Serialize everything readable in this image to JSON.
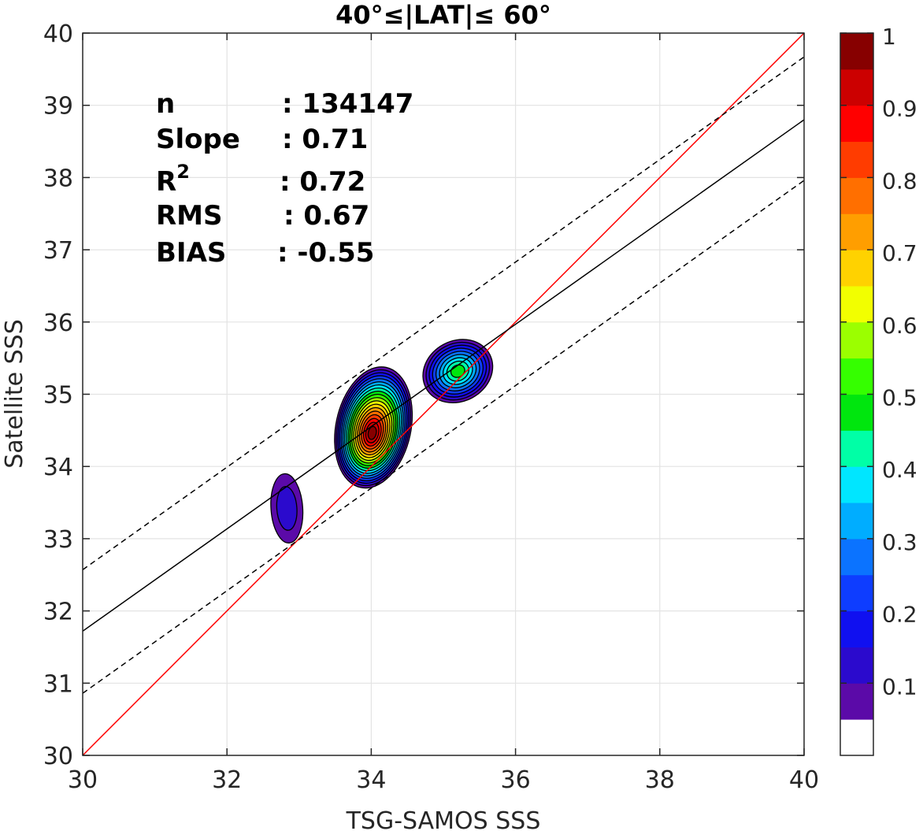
{
  "chart_data": {
    "type": "contour-scatter",
    "title": "40°≤|LAT|≤ 60°",
    "xlabel": "TSG-SAMOS SSS",
    "ylabel": "Satellite SSS",
    "xlim": [
      30,
      40
    ],
    "ylim": [
      30,
      40
    ],
    "xticks": [
      "30",
      "32",
      "34",
      "36",
      "38",
      "40"
    ],
    "yticks": [
      "30",
      "31",
      "32",
      "33",
      "34",
      "35",
      "36",
      "37",
      "38",
      "39",
      "40"
    ],
    "grid": true,
    "stats": [
      {
        "name": "n",
        "value": ": 134147"
      },
      {
        "name": "Slope",
        "value": ": 0.71"
      },
      {
        "name": "R",
        "sup": "2",
        "value": ": 0.72"
      },
      {
        "name": "RMS",
        "value": ": 0.67"
      },
      {
        "name": "BIAS",
        "value": ": -0.55"
      }
    ],
    "lines": [
      {
        "name": "one-to-one",
        "color": "#ff0000",
        "style": "solid",
        "slope": 1.0,
        "intercept": 0.0
      },
      {
        "name": "regression",
        "color": "#000000",
        "style": "solid",
        "points": [
          [
            30,
            31.72
          ],
          [
            40,
            38.8
          ]
        ]
      },
      {
        "name": "upper-bound",
        "color": "#000000",
        "style": "dashed",
        "points": [
          [
            30,
            32.57
          ],
          [
            40,
            39.67
          ]
        ]
      },
      {
        "name": "lower-bound",
        "color": "#000000",
        "style": "dashed",
        "points": [
          [
            30,
            30.86
          ],
          [
            40,
            37.96
          ]
        ]
      }
    ],
    "density_clusters": [
      {
        "name": "cluster-1",
        "center": [
          32.83,
          33.42
        ],
        "peak": 0.1
      },
      {
        "name": "cluster-2",
        "center": [
          34.03,
          34.54
        ],
        "peak": 0.95
      },
      {
        "name": "cluster-3",
        "center": [
          35.2,
          35.32
        ],
        "peak": 0.45
      }
    ],
    "colorbar": {
      "ticks": [
        "0.1",
        "0.2",
        "0.3",
        "0.4",
        "0.5",
        "0.6",
        "0.7",
        "0.8",
        "0.9",
        "1"
      ],
      "range": [
        0,
        1
      ],
      "colors": [
        "#ffffff",
        "#5b0aa8",
        "#2b0acd",
        "#1010f0",
        "#0e3dff",
        "#0b73ff",
        "#00adff",
        "#00e6ff",
        "#00ffa6",
        "#00e60e",
        "#35ff00",
        "#9bff00",
        "#f2ff00",
        "#ffd200",
        "#ff9e00",
        "#ff6f00",
        "#ff3c00",
        "#ff0000",
        "#cc0000",
        "#870000"
      ]
    }
  }
}
